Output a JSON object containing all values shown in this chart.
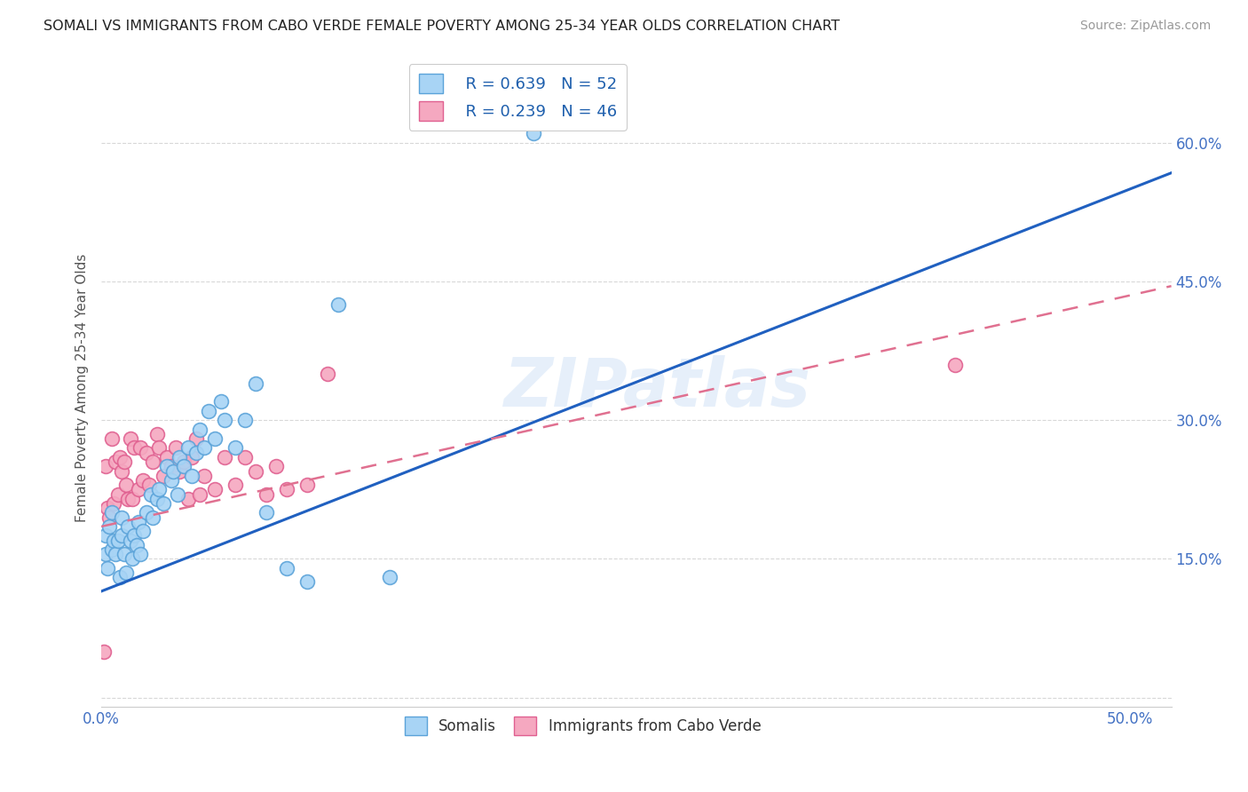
{
  "title": "SOMALI VS IMMIGRANTS FROM CABO VERDE FEMALE POVERTY AMONG 25-34 YEAR OLDS CORRELATION CHART",
  "source": "Source: ZipAtlas.com",
  "ylabel": "Female Poverty Among 25-34 Year Olds",
  "xlim": [
    0.0,
    0.52
  ],
  "ylim": [
    -0.01,
    0.68
  ],
  "xticks": [
    0.0,
    0.1,
    0.2,
    0.3,
    0.4,
    0.5
  ],
  "xticklabels": [
    "0.0%",
    "",
    "",
    "",
    "",
    "50.0%"
  ],
  "yticks": [
    0.0,
    0.15,
    0.3,
    0.45,
    0.6
  ],
  "yticklabels": [
    "",
    "15.0%",
    "30.0%",
    "45.0%",
    "60.0%"
  ],
  "watermark": "ZIPatlas",
  "somali_R": 0.639,
  "somali_N": 52,
  "caboverde_R": 0.239,
  "caboverde_N": 46,
  "somali_color": "#a8d4f5",
  "caboverde_color": "#f5a8c0",
  "somali_edge_color": "#5ba3d9",
  "caboverde_edge_color": "#e06090",
  "somali_line_color": "#2060c0",
  "caboverde_line_color": "#e07090",
  "grid_color": "#d8d8d8",
  "somali_points_x": [
    0.002,
    0.002,
    0.003,
    0.004,
    0.005,
    0.005,
    0.006,
    0.007,
    0.008,
    0.009,
    0.01,
    0.01,
    0.011,
    0.012,
    0.013,
    0.014,
    0.015,
    0.016,
    0.017,
    0.018,
    0.019,
    0.02,
    0.022,
    0.024,
    0.025,
    0.027,
    0.028,
    0.03,
    0.032,
    0.034,
    0.035,
    0.037,
    0.038,
    0.04,
    0.042,
    0.044,
    0.046,
    0.048,
    0.05,
    0.052,
    0.055,
    0.058,
    0.06,
    0.065,
    0.07,
    0.075,
    0.08,
    0.09,
    0.1,
    0.115,
    0.14,
    0.21
  ],
  "somali_points_y": [
    0.175,
    0.155,
    0.14,
    0.185,
    0.16,
    0.2,
    0.17,
    0.155,
    0.17,
    0.13,
    0.175,
    0.195,
    0.155,
    0.135,
    0.185,
    0.17,
    0.15,
    0.175,
    0.165,
    0.19,
    0.155,
    0.18,
    0.2,
    0.22,
    0.195,
    0.215,
    0.225,
    0.21,
    0.25,
    0.235,
    0.245,
    0.22,
    0.26,
    0.25,
    0.27,
    0.24,
    0.265,
    0.29,
    0.27,
    0.31,
    0.28,
    0.32,
    0.3,
    0.27,
    0.3,
    0.34,
    0.2,
    0.14,
    0.125,
    0.425,
    0.13,
    0.61
  ],
  "caboverde_points_x": [
    0.001,
    0.002,
    0.003,
    0.004,
    0.005,
    0.006,
    0.007,
    0.008,
    0.009,
    0.01,
    0.011,
    0.012,
    0.013,
    0.014,
    0.015,
    0.016,
    0.018,
    0.019,
    0.02,
    0.022,
    0.023,
    0.025,
    0.027,
    0.028,
    0.03,
    0.032,
    0.034,
    0.036,
    0.038,
    0.04,
    0.042,
    0.044,
    0.046,
    0.048,
    0.05,
    0.055,
    0.06,
    0.065,
    0.07,
    0.075,
    0.08,
    0.085,
    0.09,
    0.1,
    0.11,
    0.415
  ],
  "caboverde_points_y": [
    0.05,
    0.25,
    0.205,
    0.195,
    0.28,
    0.21,
    0.255,
    0.22,
    0.26,
    0.245,
    0.255,
    0.23,
    0.215,
    0.28,
    0.215,
    0.27,
    0.225,
    0.27,
    0.235,
    0.265,
    0.23,
    0.255,
    0.285,
    0.27,
    0.24,
    0.26,
    0.25,
    0.27,
    0.245,
    0.255,
    0.215,
    0.26,
    0.28,
    0.22,
    0.24,
    0.225,
    0.26,
    0.23,
    0.26,
    0.245,
    0.22,
    0.25,
    0.225,
    0.23,
    0.35,
    0.36
  ]
}
